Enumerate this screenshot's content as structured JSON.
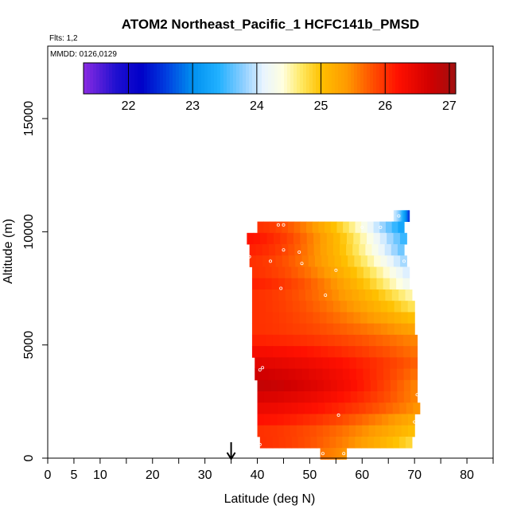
{
  "chart_data": {
    "type": "heatmap",
    "title": "ATOM2 Northeast_Pacific_1 HCFC141b_PMSD",
    "flights_label": "Flts: 1,2",
    "mmdd_label": "MMDD: 0126,0129",
    "xlabel": "Latitude (deg N)",
    "ylabel": "Altitude (m)",
    "xlim": [
      0,
      85
    ],
    "ylim": [
      0,
      18200
    ],
    "x_ticks": [
      0,
      5,
      10,
      20,
      30,
      40,
      50,
      60,
      70,
      80
    ],
    "x_tick_labels": [
      "0",
      "5",
      "10",
      "20",
      "30",
      "40",
      "50",
      "60",
      "70",
      "80"
    ],
    "x_minor_ticks": [
      15,
      25,
      35,
      45,
      55,
      65,
      75,
      85
    ],
    "y_ticks": [
      0,
      5000,
      10000,
      15000
    ],
    "y_tick_labels": [
      "0",
      "5000",
      "10000",
      "15000"
    ],
    "marker_latitude": 35,
    "colorbar": {
      "min": 21.3,
      "max": 27.1,
      "ticks": [
        22,
        23,
        24,
        25,
        26,
        27
      ],
      "tick_labels": [
        "22",
        "23",
        "24",
        "25",
        "26",
        "27"
      ],
      "stops": [
        [
          21.3,
          "#8a2be2"
        ],
        [
          21.8,
          "#2010d0"
        ],
        [
          22.2,
          "#0000c8"
        ],
        [
          22.6,
          "#0040e0"
        ],
        [
          23.0,
          "#0090f0"
        ],
        [
          23.4,
          "#20b0ff"
        ],
        [
          23.8,
          "#90d0ff"
        ],
        [
          24.1,
          "#e8f4ff"
        ],
        [
          24.4,
          "#ffffe0"
        ],
        [
          24.7,
          "#ffe860"
        ],
        [
          25.0,
          "#ffc000"
        ],
        [
          25.4,
          "#ff9a00"
        ],
        [
          25.8,
          "#ff5000"
        ],
        [
          26.2,
          "#ff1000"
        ],
        [
          26.7,
          "#d00000"
        ],
        [
          27.1,
          "#a01010"
        ]
      ]
    },
    "rows": [
      {
        "alt": 10700,
        "lat_start": 66.0,
        "lat_end": 69.0,
        "left": 24.0,
        "right": 22.5
      },
      {
        "alt": 10200,
        "lat_start": 40.0,
        "lat_end": 68.0,
        "left": 26.0,
        "right": 23.2
      },
      {
        "alt": 9700,
        "lat_start": 38.0,
        "lat_end": 68.5,
        "left": 26.2,
        "right": 23.4
      },
      {
        "alt": 9200,
        "lat_start": 38.5,
        "lat_end": 68.0,
        "left": 26.1,
        "right": 23.6
      },
      {
        "alt": 8700,
        "lat_start": 38.5,
        "lat_end": 68.5,
        "left": 26.0,
        "right": 23.8
      },
      {
        "alt": 8200,
        "lat_start": 39.0,
        "lat_end": 69.0,
        "left": 26.0,
        "right": 24.0
      },
      {
        "alt": 7700,
        "lat_start": 39.0,
        "lat_end": 69.0,
        "left": 26.1,
        "right": 24.2
      },
      {
        "alt": 7200,
        "lat_start": 39.0,
        "lat_end": 69.5,
        "left": 26.0,
        "right": 24.5
      },
      {
        "alt": 6700,
        "lat_start": 39.0,
        "lat_end": 70.0,
        "left": 26.0,
        "right": 24.7
      },
      {
        "alt": 6200,
        "lat_start": 39.0,
        "lat_end": 70.0,
        "left": 26.0,
        "right": 25.0
      },
      {
        "alt": 5700,
        "lat_start": 39.0,
        "lat_end": 70.0,
        "left": 26.0,
        "right": 25.3
      },
      {
        "alt": 5200,
        "lat_start": 39.0,
        "lat_end": 70.5,
        "left": 26.1,
        "right": 25.5
      },
      {
        "alt": 4700,
        "lat_start": 39.0,
        "lat_end": 70.5,
        "left": 26.3,
        "right": 25.6
      },
      {
        "alt": 4200,
        "lat_start": 39.5,
        "lat_end": 70.5,
        "left": 26.5,
        "right": 25.7
      },
      {
        "alt": 3700,
        "lat_start": 39.5,
        "lat_end": 70.5,
        "left": 26.7,
        "right": 25.6
      },
      {
        "alt": 3200,
        "lat_start": 40.0,
        "lat_end": 70.5,
        "left": 26.8,
        "right": 25.5
      },
      {
        "alt": 2700,
        "lat_start": 40.0,
        "lat_end": 70.5,
        "left": 26.6,
        "right": 25.5
      },
      {
        "alt": 2200,
        "lat_start": 40.0,
        "lat_end": 71.0,
        "left": 26.4,
        "right": 25.4
      },
      {
        "alt": 1700,
        "lat_start": 40.0,
        "lat_end": 70.0,
        "left": 26.2,
        "right": 25.2
      },
      {
        "alt": 1200,
        "lat_start": 40.0,
        "lat_end": 70.0,
        "left": 26.0,
        "right": 25.0
      },
      {
        "alt": 700,
        "lat_start": 40.5,
        "lat_end": 69.5,
        "left": 26.0,
        "right": 24.8
      },
      {
        "alt": 200,
        "lat_start": 52.0,
        "lat_end": 57.0,
        "left": 25.6,
        "right": 25.4
      }
    ],
    "sample_points": [
      [
        44.0,
        10300
      ],
      [
        45.0,
        10300
      ],
      [
        60.0,
        10200
      ],
      [
        63.5,
        10200
      ],
      [
        67.0,
        10700
      ],
      [
        36.5,
        9700
      ],
      [
        45.0,
        9200
      ],
      [
        48.0,
        9100
      ],
      [
        38.5,
        8900
      ],
      [
        42.5,
        8700
      ],
      [
        48.5,
        8600
      ],
      [
        68.0,
        8700
      ],
      [
        55.0,
        8300
      ],
      [
        38.5,
        7700
      ],
      [
        44.5,
        7500
      ],
      [
        53.0,
        7200
      ],
      [
        41.0,
        4000
      ],
      [
        40.5,
        3900
      ],
      [
        70.5,
        2800
      ],
      [
        55.5,
        1900
      ],
      [
        70.0,
        1600
      ],
      [
        40.5,
        600
      ],
      [
        52.5,
        200
      ],
      [
        56.5,
        200
      ]
    ]
  }
}
